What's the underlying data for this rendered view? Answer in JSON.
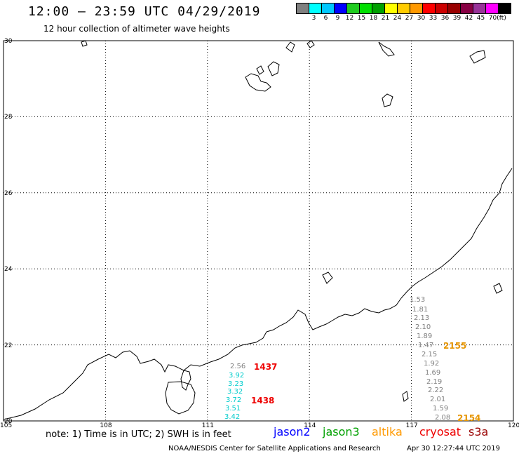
{
  "header": {
    "title": "12:00 – 23:59 UTC 04/29/2019",
    "subtitle": "12 hour collection of altimeter wave heights"
  },
  "legend": {
    "unit": "(ft)",
    "bins": [
      {
        "label": "",
        "color": "#808080"
      },
      {
        "label": "3",
        "color": "#00ffff"
      },
      {
        "label": "6",
        "color": "#00c8ff"
      },
      {
        "label": "9",
        "color": "#0000ff"
      },
      {
        "label": "12",
        "color": "#1fcc1f"
      },
      {
        "label": "15",
        "color": "#00e000"
      },
      {
        "label": "18",
        "color": "#00a000"
      },
      {
        "label": "21",
        "color": "#ffff00"
      },
      {
        "label": "24",
        "color": "#ffcc00"
      },
      {
        "label": "27",
        "color": "#ff9900"
      },
      {
        "label": "30",
        "color": "#ff0000"
      },
      {
        "label": "33",
        "color": "#cc0000"
      },
      {
        "label": "36",
        "color": "#990000"
      },
      {
        "label": "39",
        "color": "#880044"
      },
      {
        "label": "42",
        "color": "#993399"
      },
      {
        "label": "45",
        "color": "#ff00ff"
      },
      {
        "label": "70",
        "color": "#000000"
      }
    ]
  },
  "axes": {
    "lon_labels": [
      "105",
      "108",
      "111",
      "114",
      "117",
      "120"
    ],
    "lat_labels": [
      "30",
      "28",
      "26",
      "24",
      "22",
      "20"
    ]
  },
  "observations": {
    "track_a_gray": [
      {
        "text": "1.53",
        "color": "#808080"
      },
      {
        "text": "1.81",
        "color": "#808080"
      },
      {
        "text": "2.13",
        "color": "#808080"
      },
      {
        "text": "2.10",
        "color": "#808080"
      },
      {
        "text": "1.89",
        "color": "#808080"
      },
      {
        "text": "1.47",
        "color": "#808080"
      },
      {
        "text": "2.15",
        "color": "#808080"
      },
      {
        "text": "1.92",
        "color": "#808080"
      },
      {
        "text": "1.69",
        "color": "#808080"
      },
      {
        "text": "2.19",
        "color": "#808080"
      },
      {
        "text": "2.22",
        "color": "#808080"
      },
      {
        "text": "2.01",
        "color": "#808080"
      },
      {
        "text": "1.59",
        "color": "#808080"
      },
      {
        "text": "2.08",
        "color": "#808080"
      }
    ],
    "track_b": [
      {
        "text": "2.56",
        "color": "#808080"
      },
      {
        "text": "3.92",
        "color": "#00cccc"
      },
      {
        "text": "3.23",
        "color": "#00cccc"
      },
      {
        "text": "3.32",
        "color": "#00cccc"
      },
      {
        "text": "3.72",
        "color": "#00cccc"
      },
      {
        "text": "3.51",
        "color": "#00cccc"
      },
      {
        "text": "3.42",
        "color": "#00cccc"
      }
    ],
    "pass_times": [
      {
        "text": "2155",
        "color": "#e69500"
      },
      {
        "text": "2154",
        "color": "#e69500"
      },
      {
        "text": "1437",
        "color": "#ee0000"
      },
      {
        "text": "1438",
        "color": "#ee0000"
      }
    ]
  },
  "footer": {
    "note": "note: 1) Time is in UTC; 2) SWH is in feet",
    "satellites": [
      {
        "name": "jason2",
        "color": "#0000ff"
      },
      {
        "name": "jason3",
        "color": "#00a000"
      },
      {
        "name": "altika",
        "color": "#ff9900"
      },
      {
        "name": "cryosat",
        "color": "#ee0000"
      },
      {
        "name": "s3a",
        "color": "#990000"
      }
    ],
    "credit": "NOAA/NESDIS Center for Satellite Applications and Research",
    "generated": "Apr 30 12:27:44 UTC 2019"
  },
  "colors": {
    "coastline": "#000000",
    "grid": "#000000"
  }
}
